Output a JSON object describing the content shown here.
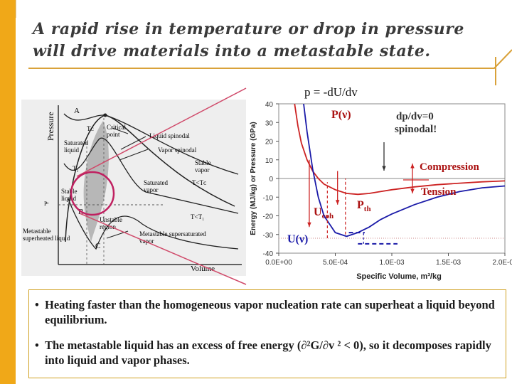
{
  "title": {
    "line1": "A rapid rise in temperature or drop in pressure",
    "line2": "will drive materials into a metastable state."
  },
  "pv_diagram": {
    "axis_y": "Pressure",
    "axis_x": "Volume",
    "labels": {
      "A": "A",
      "B": "B",
      "C": "C",
      "tc": "Tᴄ",
      "t1": "T₁",
      "critical_point": "Critical point",
      "saturated_liquid": "Saturated liquid",
      "liquid_spinodal": "Liquid spinodal",
      "vapor_spinodal": "Vapor spinodal",
      "stable_vapor": "Stable vapor",
      "saturated_vapor": "Saturated vapor",
      "t_lt_tc": "T<Tᴄ",
      "stable_liquid": "Stable liquid",
      "t_lt_t1": "T<T₁",
      "unstable_region": "Unstable region",
      "metastable_superheated_liquid": "Metastable superheated liquid",
      "metastable_supersaturated_vapor": "Metastable supersaturated vapor",
      "ps": "Pˢ"
    }
  },
  "chart": {
    "equation": "p = -dU/dv",
    "y_axis_label": "Energy (MJ/kg) or Pressure (GPa)",
    "x_axis_label": "Specific Volume, m³/kg",
    "y_ticks": [
      "40",
      "30",
      "20",
      "10",
      "0",
      "-10",
      "-20",
      "-30",
      "-40"
    ],
    "x_ticks": [
      "0.0E+00",
      "5.0E-04",
      "1.0E-03",
      "1.5E-03",
      "2.0E-03"
    ],
    "annotations": {
      "p_nu": "P(ν)",
      "u_nu": "U(ν)",
      "u_coh": "U",
      "u_coh_sub": "coh",
      "p_th": "P",
      "p_th_sub": "th",
      "spinodal_1": "dp/dv=0",
      "spinodal_2": "spinodal!",
      "compression": "Compression",
      "tension": "Tension"
    },
    "colors": {
      "pressure": "#cc2222",
      "energy": "#1a1aa8",
      "annotation": "#aa1111"
    }
  },
  "chart_data": {
    "type": "line",
    "title": "",
    "xlabel": "Specific Volume, m³/kg",
    "ylabel": "Energy (MJ/kg) or Pressure (GPa)",
    "xlim": [
      0,
      0.002
    ],
    "ylim": [
      -40,
      40
    ],
    "series": [
      {
        "name": "P(ν)",
        "x": [
          0.00014,
          0.00017,
          0.0002,
          0.00025,
          0.0003,
          0.00035,
          0.0004,
          0.0005,
          0.0006,
          0.0007,
          0.0008,
          0.0009,
          0.001,
          0.0012,
          0.0014,
          0.0016,
          0.0018,
          0.002
        ],
        "values": [
          40,
          28,
          19,
          10,
          4,
          0,
          -3,
          -6,
          -8,
          -8.5,
          -8,
          -7,
          -6,
          -4.5,
          -3.3,
          -2.5,
          -1.8,
          -1.3
        ]
      },
      {
        "name": "U(ν)",
        "x": [
          0.00022,
          0.00025,
          0.0003,
          0.00035,
          0.0004,
          0.0005,
          0.0006,
          0.0007,
          0.0008,
          0.0009,
          0.001,
          0.0012,
          0.0014,
          0.0016,
          0.0018,
          0.002
        ],
        "values": [
          40,
          25,
          5,
          -10,
          -20,
          -29,
          -31,
          -29,
          -26,
          -22,
          -19,
          -14,
          -10,
          -7,
          -5,
          -4
        ]
      }
    ]
  },
  "bullets": [
    {
      "dot": "•",
      "text": "Heating faster than the homogeneous vapor nucleation rate can superheat a liquid beyond equilibrium."
    },
    {
      "dot": "•",
      "text": "The metastable liquid has an excess of free energy (∂²G/∂v ² < 0), so it decomposes rapidly into liquid and vapor phases."
    }
  ]
}
